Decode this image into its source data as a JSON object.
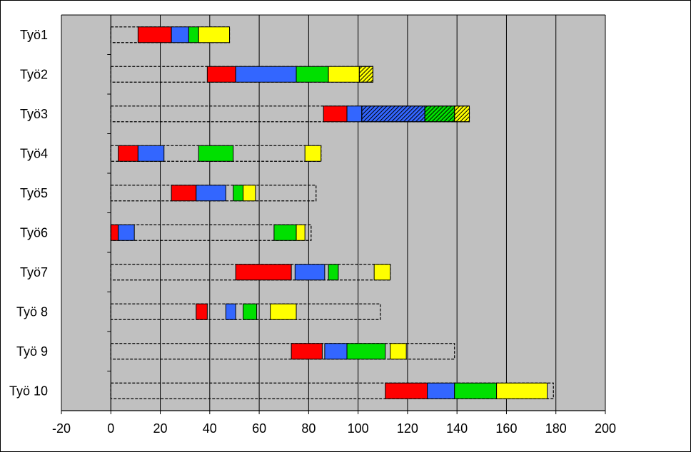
{
  "chart_data": {
    "type": "bar",
    "subtype": "gantt",
    "title": "",
    "xlabel": "",
    "ylabel": "",
    "xlim": [
      -20,
      200
    ],
    "xticks": [
      -20,
      0,
      20,
      40,
      60,
      80,
      100,
      120,
      140,
      160,
      180,
      200
    ],
    "grid": "vertical",
    "legend": "none",
    "colors": {
      "plot_bg": "#c0c0c0",
      "red": "#ff0000",
      "blue": "#3366ff",
      "green": "#00e000",
      "yellow": "#ffff00"
    },
    "categories": [
      "Työ1",
      "Työ2",
      "Työ3",
      "Työ4",
      "Työ5",
      "Työ6",
      "Työ7",
      "Työ8",
      "Työ 9",
      "Työ 10"
    ],
    "category_labels": [
      "Työ1",
      "Työ2",
      "Työ3",
      "Työ4",
      "Työ5",
      "Työ6",
      "Työ7",
      "Työ 8",
      "Työ 9",
      "Työ 10"
    ],
    "series": [
      {
        "category": "Työ1",
        "outline": [
          0,
          48
        ],
        "segments": [
          {
            "start": 11,
            "end": 24.5,
            "color": "red"
          },
          {
            "start": 24.5,
            "end": 31.5,
            "color": "blue"
          },
          {
            "start": 31.5,
            "end": 35.5,
            "color": "green"
          },
          {
            "start": 35.5,
            "end": 48,
            "color": "yellow"
          }
        ]
      },
      {
        "category": "Työ2",
        "outline": [
          0,
          106
        ],
        "segments": [
          {
            "start": 39,
            "end": 50.5,
            "color": "red"
          },
          {
            "start": 50.5,
            "end": 75,
            "color": "blue"
          },
          {
            "start": 75,
            "end": 88,
            "color": "green"
          },
          {
            "start": 88,
            "end": 100.5,
            "color": "yellow"
          },
          {
            "start": 100.5,
            "end": 106,
            "color": "yellow",
            "hatched": true
          }
        ]
      },
      {
        "category": "Työ3",
        "outline": [
          0,
          145
        ],
        "segments": [
          {
            "start": 86,
            "end": 95.5,
            "color": "red"
          },
          {
            "start": 95.5,
            "end": 101.5,
            "color": "blue"
          },
          {
            "start": 101.5,
            "end": 127,
            "color": "blue",
            "hatched": true
          },
          {
            "start": 127,
            "end": 139,
            "color": "green",
            "hatched": true
          },
          {
            "start": 139,
            "end": 145,
            "color": "yellow",
            "hatched": true
          }
        ]
      },
      {
        "category": "Työ4",
        "outline": [
          0,
          85
        ],
        "segments": [
          {
            "start": 3,
            "end": 11,
            "color": "red"
          },
          {
            "start": 11,
            "end": 21.5,
            "color": "blue"
          },
          {
            "start": 35.5,
            "end": 49.5,
            "color": "green"
          },
          {
            "start": 78.5,
            "end": 85,
            "color": "yellow"
          }
        ]
      },
      {
        "category": "Työ5",
        "outline": [
          0,
          83
        ],
        "segments": [
          {
            "start": 24.5,
            "end": 34.5,
            "color": "red"
          },
          {
            "start": 34.5,
            "end": 46.5,
            "color": "blue"
          },
          {
            "start": 49.5,
            "end": 53.5,
            "color": "green"
          },
          {
            "start": 53.5,
            "end": 58.5,
            "color": "yellow"
          }
        ]
      },
      {
        "category": "Työ6",
        "outline": [
          0,
          81
        ],
        "segments": [
          {
            "start": 0,
            "end": 3,
            "color": "red"
          },
          {
            "start": 3,
            "end": 9.5,
            "color": "blue"
          },
          {
            "start": 66,
            "end": 75,
            "color": "green"
          },
          {
            "start": 75,
            "end": 78.5,
            "color": "yellow"
          }
        ]
      },
      {
        "category": "Työ7",
        "outline": [
          0,
          113
        ],
        "segments": [
          {
            "start": 50.5,
            "end": 73,
            "color": "red"
          },
          {
            "start": 74.5,
            "end": 86.5,
            "color": "blue"
          },
          {
            "start": 88,
            "end": 92,
            "color": "green"
          },
          {
            "start": 106.5,
            "end": 113,
            "color": "yellow"
          }
        ]
      },
      {
        "category": "Työ8",
        "outline": [
          0,
          109
        ],
        "segments": [
          {
            "start": 34.5,
            "end": 39,
            "color": "red"
          },
          {
            "start": 46.5,
            "end": 50.5,
            "color": "blue"
          },
          {
            "start": 53.5,
            "end": 59,
            "color": "green"
          },
          {
            "start": 64.5,
            "end": 75,
            "color": "yellow"
          }
        ]
      },
      {
        "category": "Työ 9",
        "outline": [
          0,
          139
        ],
        "segments": [
          {
            "start": 73,
            "end": 85.5,
            "color": "red"
          },
          {
            "start": 86.5,
            "end": 95.5,
            "color": "blue"
          },
          {
            "start": 95.5,
            "end": 111,
            "color": "green"
          },
          {
            "start": 113,
            "end": 119.5,
            "color": "yellow"
          }
        ]
      },
      {
        "category": "Työ 10",
        "outline": [
          0,
          179
        ],
        "segments": [
          {
            "start": 111,
            "end": 128,
            "color": "red"
          },
          {
            "start": 128,
            "end": 139,
            "color": "blue"
          },
          {
            "start": 139,
            "end": 156,
            "color": "green"
          },
          {
            "start": 156,
            "end": 176.5,
            "color": "yellow"
          }
        ]
      }
    ]
  }
}
